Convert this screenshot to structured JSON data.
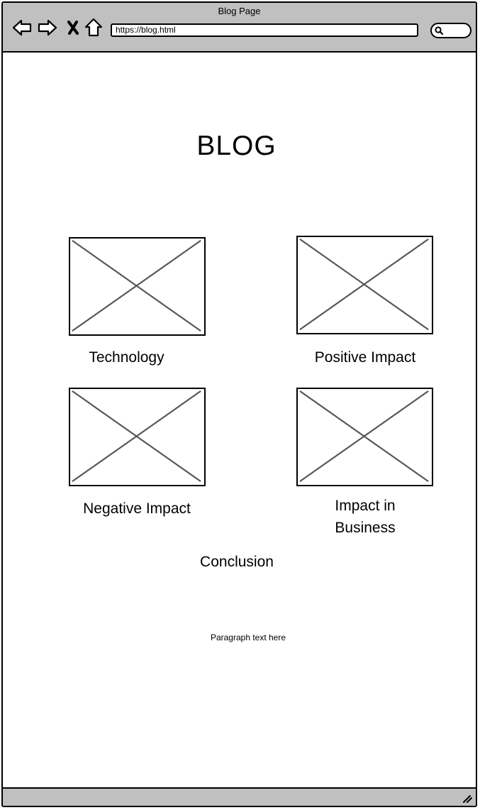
{
  "browser": {
    "title": "Blog Page",
    "url": "https://blog.html",
    "nav_icons": [
      "back-arrow-icon",
      "forward-arrow-icon",
      "close-icon",
      "home-icon"
    ],
    "search_icon": "search-icon"
  },
  "page": {
    "heading": "BLOG",
    "cards": [
      {
        "label": "Technology",
        "image": "image-placeholder"
      },
      {
        "label": "Positive Impact",
        "image": "image-placeholder"
      },
      {
        "label": "Negative Impact",
        "image": "image-placeholder"
      },
      {
        "label_line1": "Impact in",
        "label_line2": "Business",
        "image": "image-placeholder"
      }
    ],
    "conclusion": "Conclusion",
    "paragraph": "Paragraph text here"
  },
  "colors": {
    "chrome": "#c0c0c0",
    "placeholder_cross": "#555555",
    "border": "#000000"
  }
}
